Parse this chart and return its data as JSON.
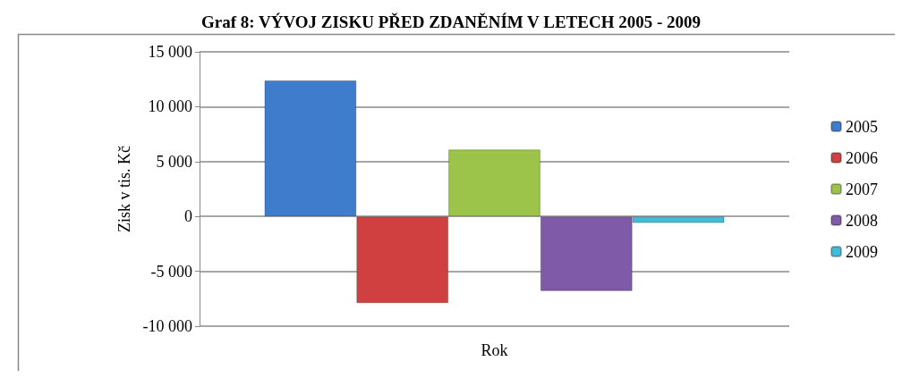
{
  "chart_data": {
    "type": "bar",
    "title": "Graf 8: VÝVOJ ZISKU PŘED ZDANĚNÍM V LETECH 2005 - 2009",
    "xlabel": "Rok",
    "ylabel": "Zisk v tis. Kč",
    "categories": [
      null
    ],
    "series": [
      {
        "name": "2005",
        "color": "#3f7dcc",
        "values": [
          12400
        ]
      },
      {
        "name": "2006",
        "color": "#d04040",
        "values": [
          -7900
        ]
      },
      {
        "name": "2007",
        "color": "#9cc44a",
        "values": [
          6100
        ]
      },
      {
        "name": "2008",
        "color": "#7f5aa8",
        "values": [
          -6800
        ]
      },
      {
        "name": "2009",
        "color": "#40bcd8",
        "values": [
          -600
        ]
      }
    ],
    "ylim": [
      -10000,
      15000
    ],
    "yticks": [
      {
        "value": -10000,
        "label": "-10 000"
      },
      {
        "value": -5000,
        "label": "-5 000"
      },
      0,
      {
        "value": 5000,
        "label": "5 000"
      },
      {
        "value": 10000,
        "label": "10 000"
      },
      {
        "value": 15000,
        "label": "15 000"
      }
    ],
    "grid": "y",
    "legend": "right"
  }
}
